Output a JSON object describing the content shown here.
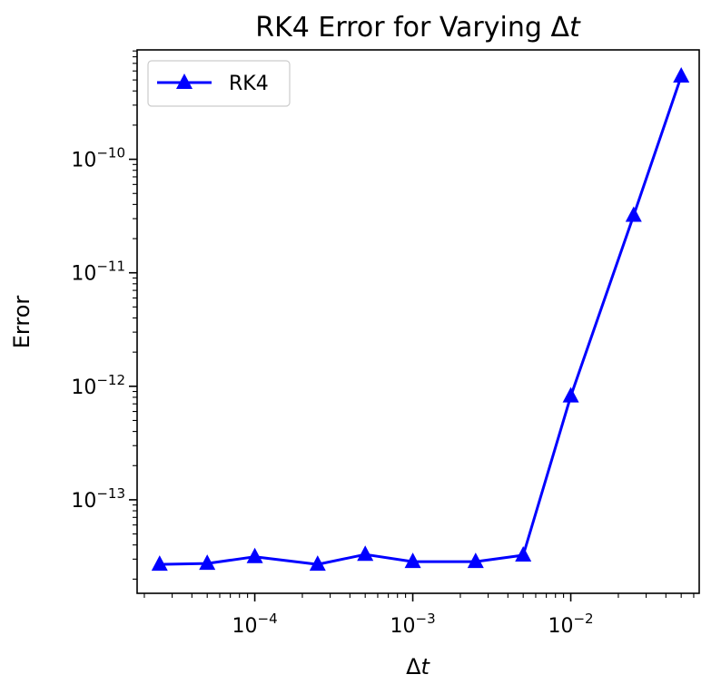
{
  "chart_data": {
    "type": "line",
    "title": "RK4 Error for Varying Δt",
    "title_prefix": "RK4 Error for Varying Δ",
    "title_var": "t",
    "xlabel": "Δt",
    "xlabel_prefix": "Δ",
    "xlabel_var": "t",
    "ylabel": "Error",
    "xscale": "log",
    "yscale": "log",
    "xlim": [
      1.8e-05,
      0.065
    ],
    "ylim": [
      1.5e-14,
      9.2e-10
    ],
    "xtick_labels": [
      "10",
      "10",
      "10"
    ],
    "xtick_exponents": [
      "−4",
      "−3",
      "−2"
    ],
    "xtick_values": [
      0.0001,
      0.001,
      0.01
    ],
    "ytick_labels": [
      "10",
      "10",
      "10",
      "10"
    ],
    "ytick_exponents": [
      "−10",
      "−11",
      "−12",
      "−13"
    ],
    "ytick_values": [
      1e-10,
      1e-11,
      1e-12,
      1e-13
    ],
    "grid": false,
    "legend_position": "upper-left",
    "series": [
      {
        "name": "RK4",
        "color": "#0000ff",
        "marker": "triangle-up",
        "x": [
          2.5e-05,
          5e-05,
          0.0001,
          0.00025,
          0.0005,
          0.001,
          0.0025,
          0.005,
          0.01,
          0.025,
          0.05
        ],
        "y": [
          2.7e-14,
          2.75e-14,
          3.15e-14,
          2.7e-14,
          3.3e-14,
          2.85e-14,
          2.85e-14,
          3.25e-14,
          8.2e-13,
          3.2e-11,
          5.4e-10
        ]
      }
    ]
  }
}
